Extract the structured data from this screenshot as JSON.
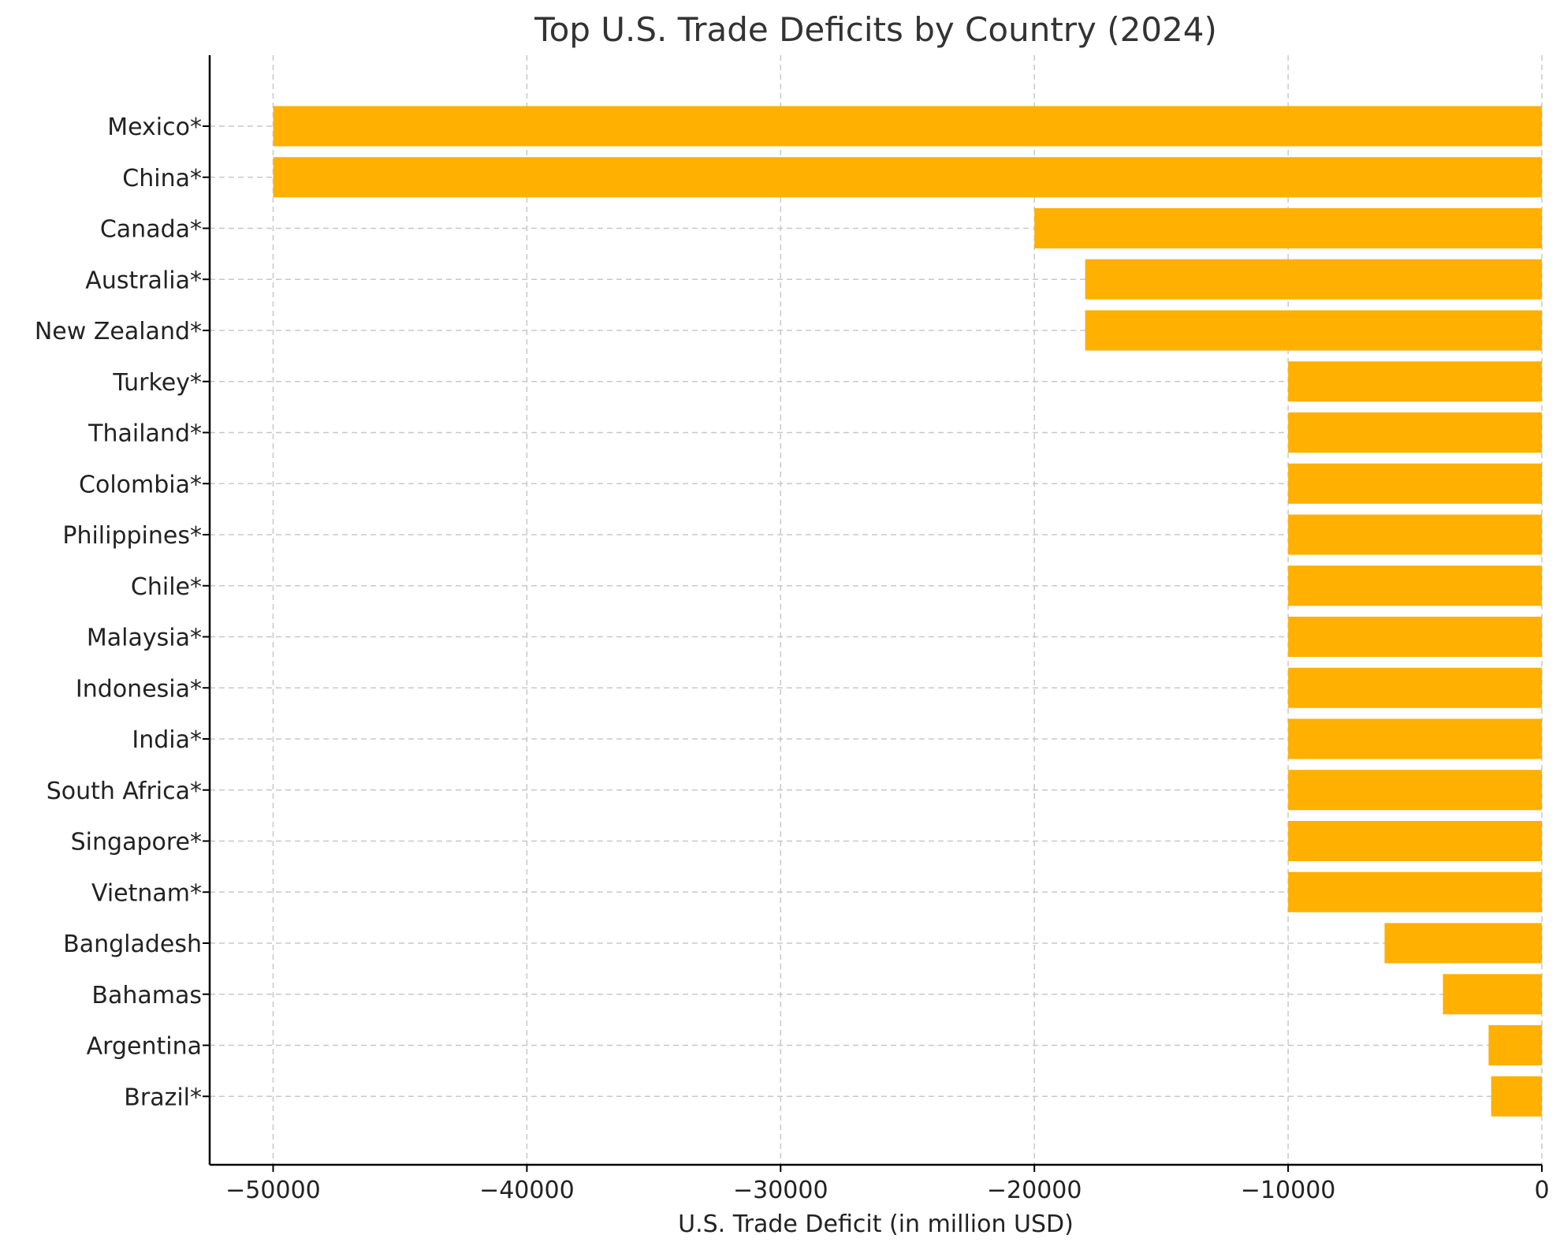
{
  "chart_data": {
    "type": "bar",
    "orientation": "horizontal",
    "title": "Top U.S. Trade Deficits by Country (2024)",
    "xlabel": "U.S. Trade Deficit (in million USD)",
    "ylabel": "",
    "categories": [
      "Mexico*",
      "China*",
      "Canada*",
      "Australia*",
      "New Zealand*",
      "Turkey*",
      "Thailand*",
      "Colombia*",
      "Philippines*",
      "Chile*",
      "Malaysia*",
      "Indonesia*",
      "India*",
      "South Africa*",
      "Singapore*",
      "Vietnam*",
      "Bangladesh",
      "Bahamas",
      "Argentina",
      "Brazil*"
    ],
    "values": [
      -50000,
      -50000,
      -20000,
      -18000,
      -18000,
      -10000,
      -10000,
      -10000,
      -10000,
      -10000,
      -10000,
      -10000,
      -10000,
      -10000,
      -10000,
      -10000,
      -6200,
      -3900,
      -2100,
      -2000
    ],
    "xlim": [
      -52500,
      0
    ],
    "xticks": [
      -50000,
      -40000,
      -30000,
      -20000,
      -10000,
      0
    ],
    "xtick_labels": [
      "−50000",
      "−40000",
      "−30000",
      "−20000",
      "−10000",
      "0"
    ],
    "grid": true,
    "bar_color": "#FFB000",
    "legend": false
  }
}
